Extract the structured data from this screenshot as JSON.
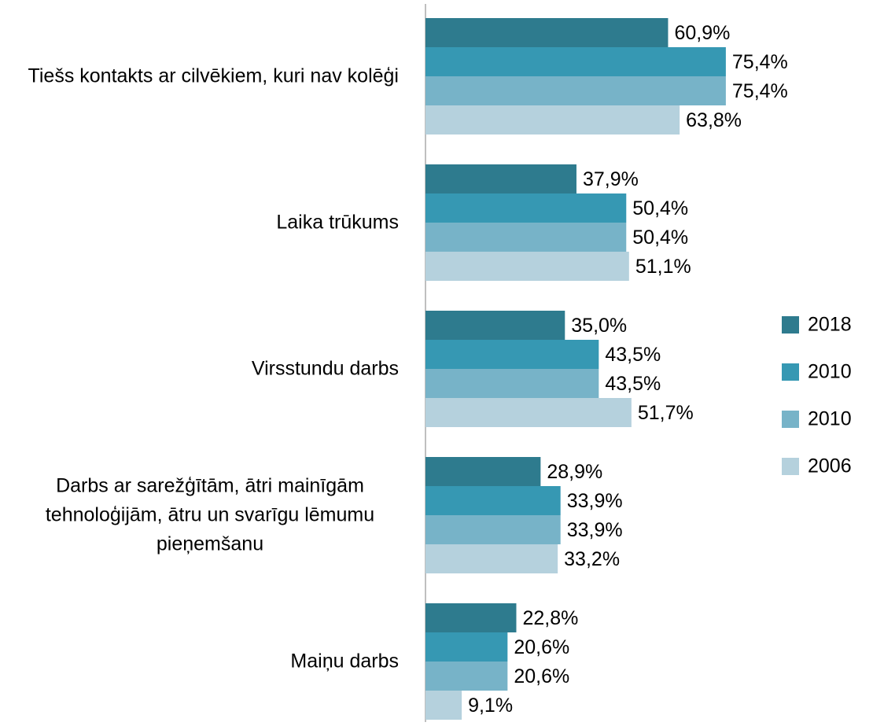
{
  "chart_data": {
    "type": "hbar",
    "categories": [
      "Tiešs kontakts ar cilvēkiem, kuri nav kolēģi",
      "Laika trūkums",
      "Virsstundu darbs",
      "Darbs ar sarežģītām, ātri mainīgām tehnoloģijām, ātru un svarīgu lēmumu pieņemšanu",
      "Maiņu darbs"
    ],
    "series": [
      {
        "name": "2018",
        "color": "#2e7b8e",
        "values": [
          60.9,
          37.9,
          35.0,
          28.9,
          22.8
        ],
        "value_labels": [
          "60,9%",
          "37,9%",
          "35,0%",
          "28,9%",
          "22,8%"
        ]
      },
      {
        "name": "2010",
        "color": "#3698b3",
        "values": [
          75.4,
          50.4,
          43.5,
          33.9,
          20.6
        ],
        "value_labels": [
          "75,4%",
          "50,4%",
          "43,5%",
          "33,9%",
          "20,6%"
        ]
      },
      {
        "name": "2010",
        "color": "#77b3c8",
        "values": [
          75.4,
          50.4,
          43.5,
          33.9,
          20.6
        ],
        "value_labels": [
          "75,4%",
          "50,4%",
          "43,5%",
          "33,9%",
          "20,6%"
        ]
      },
      {
        "name": "2006",
        "color": "#b5d1dd",
        "values": [
          63.8,
          51.1,
          51.7,
          33.2,
          9.1
        ],
        "value_labels": [
          "63,8%",
          "51,1%",
          "51,7%",
          "33,2%",
          "9,1%"
        ]
      }
    ],
    "xlim": [
      0,
      100
    ],
    "legend": "right"
  }
}
